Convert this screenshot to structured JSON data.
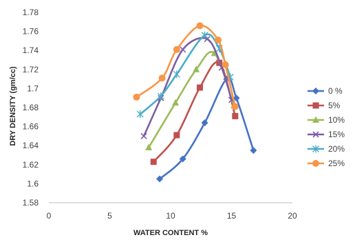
{
  "chart_data": {
    "type": "line",
    "title": "",
    "xlabel": "WATER CONTENT %",
    "ylabel": "DRY DENSITY (gm/cc)",
    "xlim": [
      0,
      20
    ],
    "ylim": [
      1.58,
      1.78
    ],
    "xticks": [
      0,
      5,
      10,
      15,
      20
    ],
    "yticks": [
      1.58,
      1.6,
      1.62,
      1.64,
      1.66,
      1.68,
      1.7,
      1.72,
      1.74,
      1.76,
      1.78
    ],
    "ytick_labels": [
      "1.58",
      "1.6",
      "1.62",
      "1.64",
      "1.66",
      "1.68",
      "1.7",
      "1.72",
      "1.74",
      "1.76",
      "1.78"
    ],
    "grid": false,
    "legend_position": "right",
    "series": [
      {
        "name": "0 %",
        "color": "#4472C4",
        "marker": "diamond",
        "x": [
          9.1,
          11.0,
          12.8,
          14.6,
          15.4,
          16.8
        ],
        "y": [
          1.605,
          1.626,
          1.664,
          1.71,
          1.69,
          1.635
        ]
      },
      {
        "name": "5%",
        "color": "#C0504D",
        "marker": "square",
        "x": [
          8.6,
          10.5,
          12.4,
          14.0,
          15.3
        ],
        "y": [
          1.623,
          1.651,
          1.701,
          1.727,
          1.671
        ]
      },
      {
        "name": "10%",
        "color": "#9BBB59",
        "marker": "triangle",
        "x": [
          8.2,
          10.4,
          12.1,
          13.6,
          15.2
        ],
        "y": [
          1.638,
          1.685,
          1.72,
          1.737,
          1.682
        ]
      },
      {
        "name": "15%",
        "color": "#7F5DA6",
        "marker": "x",
        "x": [
          7.8,
          9.2,
          11.0,
          13.0,
          14.2,
          15.0
        ],
        "y": [
          1.65,
          1.69,
          1.741,
          1.752,
          1.722,
          1.688
        ]
      },
      {
        "name": "20%",
        "color": "#4BACC6",
        "marker": "star",
        "x": [
          7.5,
          9.2,
          10.5,
          12.8,
          14.0,
          14.9
        ],
        "y": [
          1.673,
          1.692,
          1.715,
          1.756,
          1.742,
          1.712
        ]
      },
      {
        "name": "25%",
        "color": "#F79646",
        "marker": "circle",
        "x": [
          7.2,
          9.3,
          10.5,
          12.4,
          13.9,
          14.5,
          15.3
        ],
        "y": [
          1.691,
          1.711,
          1.741,
          1.766,
          1.751,
          1.725,
          1.681
        ]
      }
    ]
  }
}
